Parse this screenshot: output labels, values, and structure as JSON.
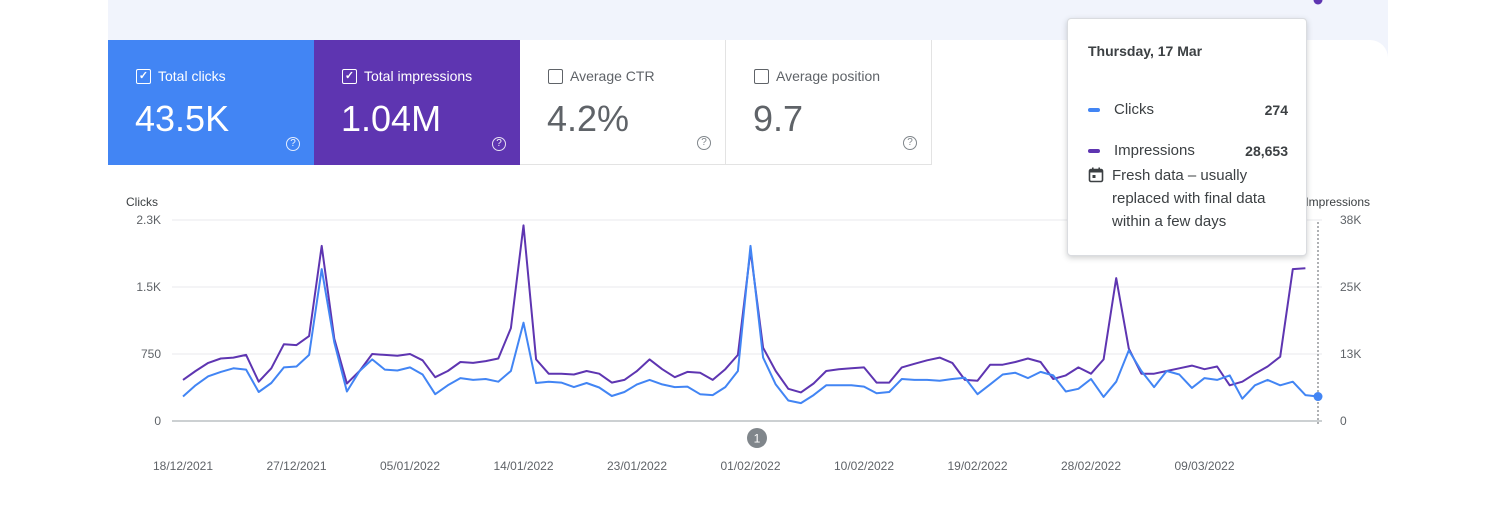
{
  "metrics": [
    {
      "key": "clicks",
      "label": "Total clicks",
      "value": "43.5K",
      "selected": true,
      "color": "#4285f4",
      "check": "✓",
      "help": "?"
    },
    {
      "key": "impressions",
      "label": "Total impressions",
      "value": "1.04M",
      "selected": true,
      "color": "#5e35b1",
      "check": "✓",
      "help": "?"
    },
    {
      "key": "ctr",
      "label": "Average CTR",
      "value": "4.2%",
      "selected": false,
      "color": "#ffffff",
      "check": "",
      "help": "?"
    },
    {
      "key": "position",
      "label": "Average position",
      "value": "9.7",
      "selected": false,
      "color": "#ffffff",
      "check": "",
      "help": "?"
    }
  ],
  "tooltip": {
    "date": "Thursday, 17 Mar",
    "rows": [
      {
        "label": "Clicks",
        "value": "274",
        "color": "#4285f4"
      },
      {
        "label": "Impressions",
        "value": "28,653",
        "color": "#5e35b1"
      }
    ],
    "note": "Fresh data – usually replaced with final data within a few days",
    "note_icon": "calendar-icon"
  },
  "annotation": {
    "label": "1",
    "date": "01/02/2022"
  },
  "chart_data": {
    "type": "line",
    "x_start": "18/12/2021",
    "x_end": "17/03/2022",
    "x_ticks": [
      "18/12/2021",
      "27/12/2021",
      "05/01/2022",
      "14/01/2022",
      "23/01/2022",
      "01/02/2022",
      "10/02/2022",
      "19/02/2022",
      "28/02/2022",
      "09/03/2022"
    ],
    "left_axis": {
      "label": "Clicks",
      "ticks": [
        "0",
        "750",
        "1.5K",
        "2.3K"
      ],
      "tick_values": [
        0,
        750,
        1500,
        2250
      ],
      "range": [
        0,
        2250
      ]
    },
    "right_axis": {
      "label": "Impressions",
      "ticks": [
        "0",
        "13K",
        "25K",
        "38K"
      ],
      "tick_values": [
        0,
        12667,
        25333,
        38000
      ],
      "range": [
        0,
        38000
      ]
    },
    "grid": true,
    "series": [
      {
        "name": "Clicks",
        "axis": "left",
        "color": "#4285f4",
        "values": [
          274,
          400,
          500,
          550,
          590,
          575,
          325,
          425,
          600,
          610,
          740,
          1700,
          880,
          330,
          560,
          690,
          575,
          565,
          600,
          520,
          300,
          400,
          480,
          460,
          470,
          440,
          560,
          1100,
          425,
          440,
          430,
          380,
          425,
          375,
          280,
          325,
          410,
          460,
          410,
          380,
          385,
          300,
          290,
          380,
          560,
          1960,
          710,
          410,
          230,
          200,
          290,
          400,
          400,
          400,
          385,
          310,
          325,
          470,
          460,
          460,
          450,
          470,
          485,
          300,
          410,
          520,
          540,
          480,
          550,
          510,
          330,
          360,
          470,
          270,
          440,
          790,
          560,
          380,
          560,
          520,
          370,
          480,
          460,
          510,
          250,
          400,
          460,
          400,
          440,
          290,
          274
        ]
      },
      {
        "name": "Impressions",
        "axis": "left",
        "color": "#5e35b1",
        "values": [
          460,
          560,
          650,
          700,
          710,
          740,
          440,
          590,
          860,
          850,
          950,
          1960,
          920,
          420,
          560,
          750,
          740,
          730,
          750,
          680,
          490,
          560,
          660,
          650,
          670,
          700,
          1040,
          2190,
          690,
          530,
          530,
          520,
          560,
          530,
          430,
          460,
          560,
          690,
          580,
          490,
          550,
          540,
          460,
          580,
          740,
          1910,
          820,
          560,
          360,
          320,
          420,
          560,
          580,
          590,
          600,
          430,
          430,
          600,
          640,
          680,
          710,
          650,
          460,
          450,
          630,
          630,
          660,
          700,
          660,
          470,
          510,
          600,
          530,
          690,
          1600,
          810,
          530,
          530,
          560,
          590,
          620,
          580,
          610,
          400,
          440,
          530,
          610,
          720,
          1700,
          1710
        ]
      }
    ]
  }
}
